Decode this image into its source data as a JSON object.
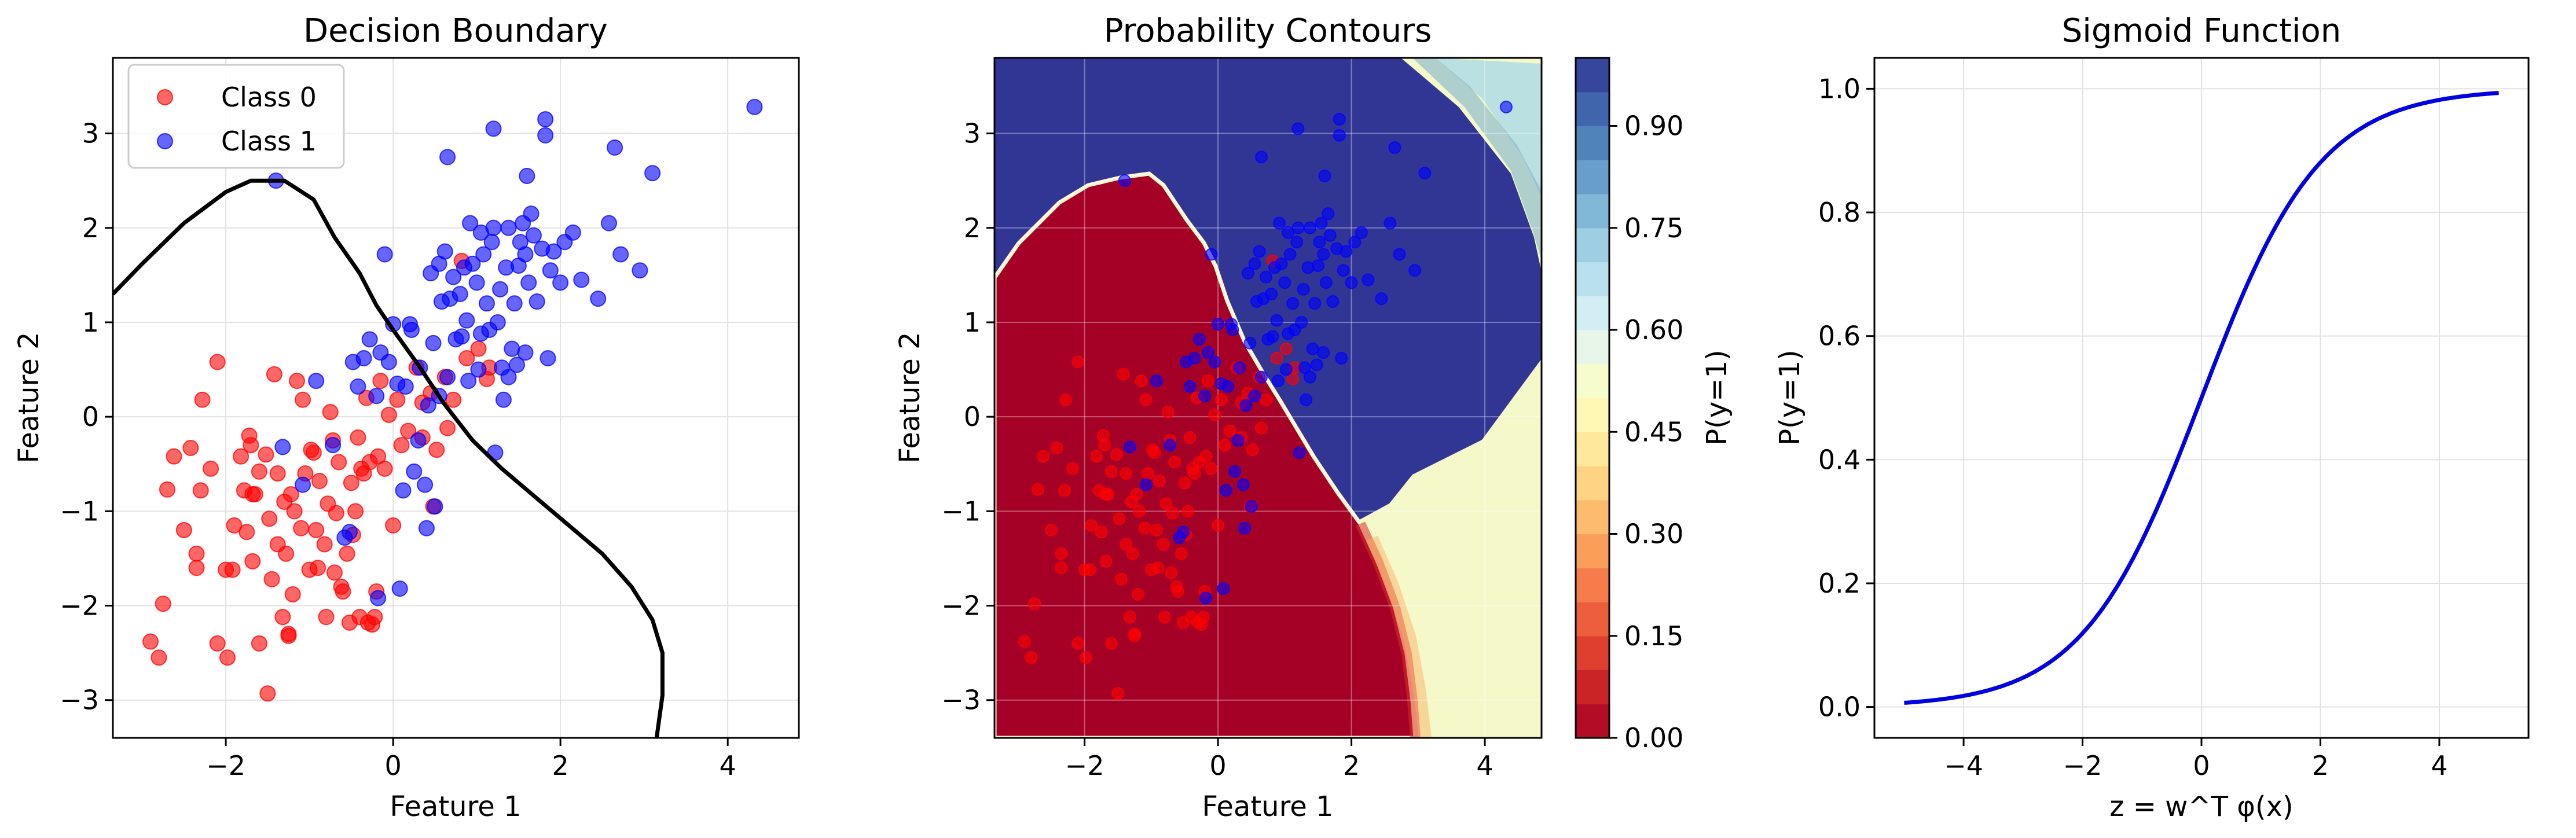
{
  "chart_data": [
    {
      "type": "scatter",
      "title": "Decision Boundary",
      "xlabel": "Feature 1",
      "ylabel": "Feature 2",
      "xlim": [
        -3.35,
        4.85
      ],
      "ylim": [
        -3.4,
        3.8
      ],
      "xticks": [
        -2,
        0,
        2,
        4
      ],
      "yticks": [
        -3,
        -2,
        -1,
        0,
        1,
        2,
        3
      ],
      "tick_labels_x": [
        "−2",
        "0",
        "2",
        "4"
      ],
      "tick_labels_y": [
        "−3",
        "−2",
        "−1",
        "0",
        "1",
        "2",
        "3"
      ],
      "grid": true,
      "legend_position": "top-left",
      "series": [
        {
          "name": "Class 0",
          "color": "#ff0000",
          "points": [
            [
              -2.9,
              -2.38
            ],
            [
              -2.8,
              -2.55
            ],
            [
              -2.75,
              -1.98
            ],
            [
              -2.7,
              -0.77
            ],
            [
              -2.62,
              -0.42
            ],
            [
              -2.5,
              -1.2
            ],
            [
              -2.42,
              -0.33
            ],
            [
              -2.35,
              -1.45
            ],
            [
              -2.35,
              -1.6
            ],
            [
              -2.3,
              -0.78
            ],
            [
              -2.28,
              0.18
            ],
            [
              -2.18,
              -0.55
            ],
            [
              -2.1,
              -2.4
            ],
            [
              -2.1,
              0.58
            ],
            [
              -2.0,
              -1.62
            ],
            [
              -1.98,
              -2.55
            ],
            [
              -1.92,
              -1.62
            ],
            [
              -1.9,
              -1.15
            ],
            [
              -1.82,
              -0.42
            ],
            [
              -1.78,
              -0.78
            ],
            [
              -1.75,
              -1.22
            ],
            [
              -1.72,
              -0.2
            ],
            [
              -1.7,
              -0.3
            ],
            [
              -1.68,
              -1.53
            ],
            [
              -1.68,
              -0.82
            ],
            [
              -1.65,
              -0.82
            ],
            [
              -1.6,
              -2.4
            ],
            [
              -1.6,
              -0.58
            ],
            [
              -1.52,
              -0.4
            ],
            [
              -1.5,
              -2.93
            ],
            [
              -1.48,
              -1.08
            ],
            [
              -1.45,
              -1.72
            ],
            [
              -1.42,
              0.45
            ],
            [
              -1.38,
              -0.6
            ],
            [
              -1.38,
              -1.35
            ],
            [
              -1.32,
              -2.12
            ],
            [
              -1.3,
              -0.9
            ],
            [
              -1.28,
              -1.45
            ],
            [
              -1.25,
              -2.3
            ],
            [
              -1.25,
              -2.32
            ],
            [
              -1.22,
              -0.82
            ],
            [
              -1.2,
              -1.88
            ],
            [
              -1.18,
              -1.0
            ],
            [
              -1.15,
              0.38
            ],
            [
              -1.1,
              -1.18
            ],
            [
              -1.08,
              0.18
            ],
            [
              -1.05,
              -0.6
            ],
            [
              -1.0,
              -1.62
            ],
            [
              -0.98,
              -0.35
            ],
            [
              -0.95,
              -0.38
            ],
            [
              -0.92,
              -1.2
            ],
            [
              -0.9,
              -1.6
            ],
            [
              -0.88,
              -0.68
            ],
            [
              -0.82,
              -1.35
            ],
            [
              -0.8,
              -2.12
            ],
            [
              -0.78,
              -0.92
            ],
            [
              -0.75,
              0.05
            ],
            [
              -0.72,
              -0.25
            ],
            [
              -0.7,
              -1.65
            ],
            [
              -0.68,
              -1.02
            ],
            [
              -0.65,
              -0.48
            ],
            [
              -0.62,
              -1.8
            ],
            [
              -0.6,
              -1.85
            ],
            [
              -0.55,
              -1.45
            ],
            [
              -0.52,
              -2.18
            ],
            [
              -0.5,
              -0.7
            ],
            [
              -0.48,
              -1.25
            ],
            [
              -0.45,
              -1.0
            ],
            [
              -0.42,
              -0.22
            ],
            [
              -0.4,
              -2.12
            ],
            [
              -0.38,
              -0.55
            ],
            [
              -0.35,
              -0.6
            ],
            [
              -0.32,
              0.2
            ],
            [
              -0.3,
              -2.18
            ],
            [
              -0.28,
              -0.48
            ],
            [
              -0.25,
              -2.2
            ],
            [
              -0.22,
              -2.12
            ],
            [
              -0.2,
              -1.85
            ],
            [
              -0.18,
              -0.42
            ],
            [
              -0.15,
              0.38
            ],
            [
              -0.1,
              -0.55
            ],
            [
              -0.05,
              0.02
            ],
            [
              0.0,
              -1.15
            ],
            [
              0.05,
              0.18
            ],
            [
              0.1,
              -0.3
            ],
            [
              0.18,
              -0.15
            ],
            [
              0.28,
              0.52
            ],
            [
              0.35,
              -0.22
            ],
            [
              0.45,
              0.25
            ],
            [
              0.48,
              -0.95
            ],
            [
              0.52,
              -0.35
            ],
            [
              0.62,
              0.42
            ],
            [
              0.72,
              0.18
            ],
            [
              0.82,
              1.65
            ],
            [
              0.88,
              0.62
            ],
            [
              1.12,
              0.4
            ],
            [
              1.02,
              0.72
            ],
            [
              1.15,
              0.52
            ],
            [
              0.65,
              -0.12
            ],
            [
              0.35,
              0.15
            ]
          ]
        },
        {
          "name": "Class 1",
          "color": "#0000ff",
          "points": [
            [
              -1.32,
              -0.32
            ],
            [
              -1.08,
              -0.72
            ],
            [
              -0.92,
              0.38
            ],
            [
              -0.72,
              -0.3
            ],
            [
              -0.58,
              -1.28
            ],
            [
              -0.52,
              -1.22
            ],
            [
              -0.48,
              0.58
            ],
            [
              -0.42,
              0.32
            ],
            [
              -0.35,
              0.62
            ],
            [
              -0.28,
              0.82
            ],
            [
              -0.2,
              0.22
            ],
            [
              -0.18,
              -1.92
            ],
            [
              -0.15,
              0.68
            ],
            [
              -0.1,
              1.72
            ],
            [
              -0.05,
              0.58
            ],
            [
              0.0,
              0.98
            ],
            [
              0.05,
              0.35
            ],
            [
              0.08,
              -1.82
            ],
            [
              0.12,
              -0.78
            ],
            [
              0.15,
              0.32
            ],
            [
              0.2,
              0.98
            ],
            [
              0.22,
              0.92
            ],
            [
              0.25,
              -0.58
            ],
            [
              0.3,
              -0.25
            ],
            [
              0.32,
              0.52
            ],
            [
              0.38,
              -0.72
            ],
            [
              0.4,
              -1.18
            ],
            [
              0.42,
              0.12
            ],
            [
              0.45,
              1.52
            ],
            [
              0.48,
              0.78
            ],
            [
              0.5,
              -0.95
            ],
            [
              0.55,
              0.22
            ],
            [
              0.58,
              1.22
            ],
            [
              0.62,
              1.75
            ],
            [
              0.65,
              0.42
            ],
            [
              0.68,
              1.25
            ],
            [
              0.72,
              1.48
            ],
            [
              0.75,
              0.82
            ],
            [
              0.8,
              1.3
            ],
            [
              0.82,
              0.85
            ],
            [
              0.85,
              1.58
            ],
            [
              0.88,
              1.02
            ],
            [
              0.9,
              0.38
            ],
            [
              0.92,
              2.05
            ],
            [
              0.95,
              1.62
            ],
            [
              1.0,
              1.42
            ],
            [
              1.02,
              0.5
            ],
            [
              1.05,
              0.88
            ],
            [
              1.08,
              1.72
            ],
            [
              1.12,
              1.2
            ],
            [
              1.15,
              0.92
            ],
            [
              1.18,
              1.85
            ],
            [
              1.2,
              2.0
            ],
            [
              1.22,
              -0.38
            ],
            [
              1.25,
              1.0
            ],
            [
              1.28,
              1.35
            ],
            [
              1.3,
              0.52
            ],
            [
              1.32,
              0.18
            ],
            [
              1.35,
              1.58
            ],
            [
              1.38,
              2.0
            ],
            [
              1.42,
              0.72
            ],
            [
              1.45,
              1.2
            ],
            [
              1.48,
              0.55
            ],
            [
              1.5,
              1.6
            ],
            [
              1.52,
              1.85
            ],
            [
              1.55,
              2.05
            ],
            [
              1.58,
              1.72
            ],
            [
              1.6,
              2.55
            ],
            [
              1.62,
              1.42
            ],
            [
              1.65,
              2.15
            ],
            [
              1.68,
              1.92
            ],
            [
              1.72,
              1.22
            ],
            [
              1.78,
              1.78
            ],
            [
              1.82,
              2.98
            ],
            [
              1.85,
              0.62
            ],
            [
              1.88,
              1.55
            ],
            [
              1.92,
              1.75
            ],
            [
              2.0,
              1.42
            ],
            [
              2.05,
              1.85
            ],
            [
              2.15,
              1.95
            ],
            [
              2.25,
              1.45
            ],
            [
              2.45,
              1.25
            ],
            [
              2.58,
              2.05
            ],
            [
              2.65,
              2.85
            ],
            [
              2.72,
              1.72
            ],
            [
              2.95,
              1.55
            ],
            [
              3.1,
              2.58
            ],
            [
              4.32,
              3.28
            ],
            [
              1.2,
              3.05
            ],
            [
              1.82,
              3.15
            ],
            [
              -1.4,
              2.5
            ],
            [
              0.65,
              2.75
            ],
            [
              1.05,
              1.95
            ],
            [
              0.55,
              1.62
            ],
            [
              1.38,
              0.42
            ],
            [
              1.58,
              0.68
            ]
          ]
        }
      ],
      "boundary": {
        "color": "#000000",
        "points": [
          [
            -3.35,
            1.3
          ],
          [
            -3.0,
            1.62
          ],
          [
            -2.5,
            2.05
          ],
          [
            -2.0,
            2.38
          ],
          [
            -1.7,
            2.5
          ],
          [
            -1.3,
            2.5
          ],
          [
            -0.95,
            2.3
          ],
          [
            -0.7,
            1.9
          ],
          [
            -0.4,
            1.52
          ],
          [
            -0.2,
            1.18
          ],
          [
            0.0,
            0.92
          ],
          [
            0.3,
            0.55
          ],
          [
            0.6,
            0.15
          ],
          [
            0.95,
            -0.25
          ],
          [
            1.3,
            -0.55
          ],
          [
            1.7,
            -0.85
          ],
          [
            2.1,
            -1.15
          ],
          [
            2.5,
            -1.45
          ],
          [
            2.85,
            -1.8
          ],
          [
            3.1,
            -2.15
          ],
          [
            3.22,
            -2.5
          ],
          [
            3.22,
            -2.95
          ],
          [
            3.15,
            -3.4
          ]
        ]
      }
    },
    {
      "type": "heatmap",
      "title": "Probability Contours",
      "xlabel": "Feature 1",
      "ylabel": "Feature 2",
      "xlim": [
        -3.35,
        4.85
      ],
      "ylim": [
        -3.4,
        3.8
      ],
      "xticks": [
        -2,
        0,
        2,
        4
      ],
      "yticks": [
        -3,
        -2,
        -1,
        0,
        1,
        2,
        3
      ],
      "tick_labels_x": [
        "−2",
        "0",
        "2",
        "4"
      ],
      "tick_labels_y": [
        "−3",
        "−2",
        "−1",
        "0",
        "1",
        "2",
        "3"
      ],
      "grid": true,
      "colorbar": {
        "label": "P(y=1)",
        "range": [
          0,
          1
        ],
        "ticks": [
          0.0,
          0.15,
          0.3,
          0.45,
          0.6,
          0.75,
          0.9
        ],
        "tick_labels": [
          "0.00",
          "0.15",
          "0.30",
          "0.45",
          "0.60",
          "0.75",
          "0.90"
        ],
        "colormap": "RdYlBu",
        "levels": 20
      }
    },
    {
      "type": "line",
      "title": "Sigmoid Function",
      "xlabel": "z = w^T φ(x)",
      "ylabel": "P(y=1)",
      "xlim": [
        -5.5,
        5.5
      ],
      "ylim": [
        -0.05,
        1.05
      ],
      "xticks": [
        -4,
        -2,
        0,
        2,
        4
      ],
      "yticks": [
        0.0,
        0.2,
        0.4,
        0.6,
        0.8,
        1.0
      ],
      "tick_labels_x": [
        "−4",
        "−2",
        "0",
        "2",
        "4"
      ],
      "tick_labels_y": [
        "0.0",
        "0.2",
        "0.4",
        "0.6",
        "0.8",
        "1.0"
      ],
      "grid": true,
      "series": [
        {
          "function": "sigmoid",
          "x_range": [
            -5,
            5
          ],
          "color": "#0000e0"
        }
      ]
    }
  ]
}
